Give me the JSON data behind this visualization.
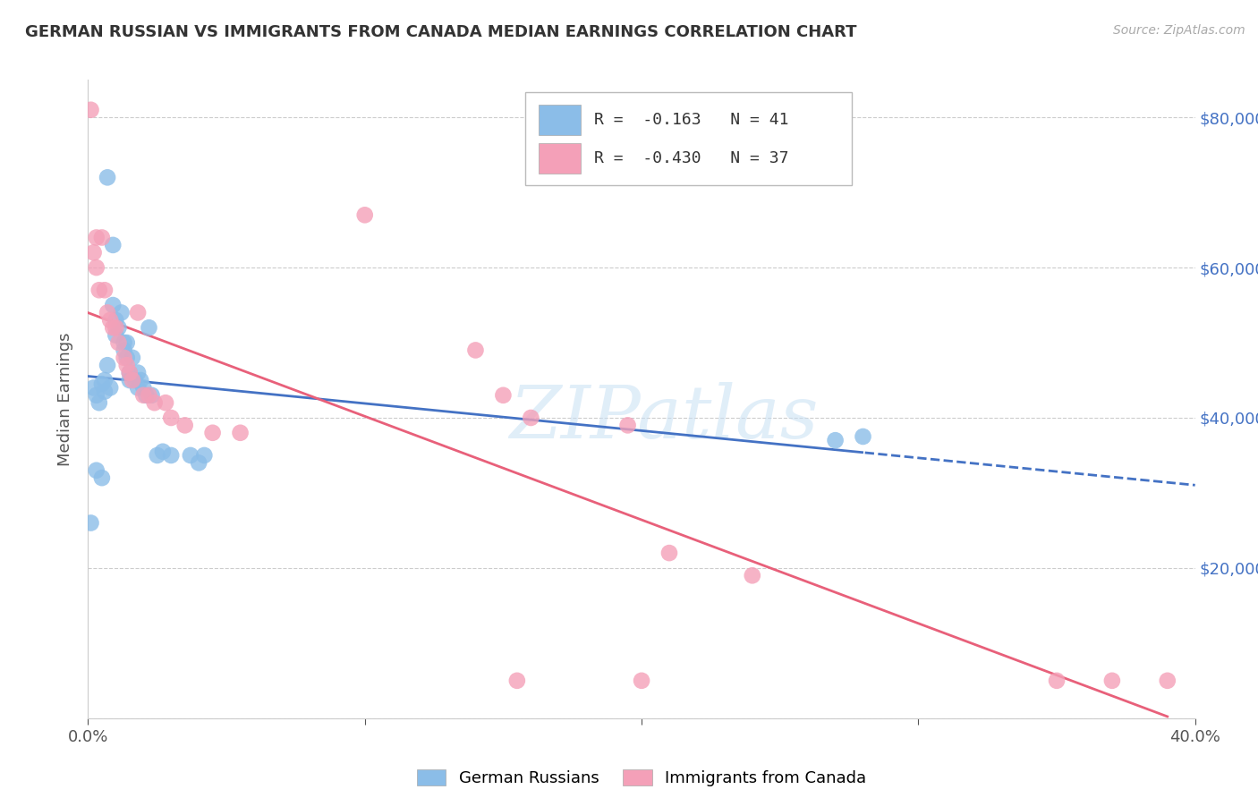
{
  "title": "GERMAN RUSSIAN VS IMMIGRANTS FROM CANADA MEDIAN EARNINGS CORRELATION CHART",
  "source": "Source: ZipAtlas.com",
  "ylabel": "Median Earnings",
  "watermark": "ZIPatlas",
  "legend_text_blue_R": "R =  -0.163",
  "legend_text_blue_N": "N = 41",
  "legend_text_pink_R": "R =  -0.430",
  "legend_text_pink_N": "N = 37",
  "legend_labels": [
    "German Russians",
    "Immigrants from Canada"
  ],
  "blue_color": "#8BBDE8",
  "pink_color": "#F4A0B8",
  "blue_line_color": "#4472C4",
  "pink_line_color": "#E8607A",
  "blue_scatter": [
    [
      0.002,
      44000
    ],
    [
      0.003,
      43000
    ],
    [
      0.004,
      42000
    ],
    [
      0.005,
      44500
    ],
    [
      0.006,
      43500
    ],
    [
      0.006,
      45000
    ],
    [
      0.007,
      72000
    ],
    [
      0.007,
      47000
    ],
    [
      0.008,
      44000
    ],
    [
      0.009,
      63000
    ],
    [
      0.009,
      55000
    ],
    [
      0.01,
      53000
    ],
    [
      0.01,
      51000
    ],
    [
      0.011,
      52000
    ],
    [
      0.012,
      54000
    ],
    [
      0.013,
      50000
    ],
    [
      0.013,
      49000
    ],
    [
      0.014,
      50000
    ],
    [
      0.014,
      48000
    ],
    [
      0.015,
      46000
    ],
    [
      0.015,
      45000
    ],
    [
      0.016,
      48000
    ],
    [
      0.017,
      45000
    ],
    [
      0.018,
      46000
    ],
    [
      0.018,
      44000
    ],
    [
      0.019,
      45000
    ],
    [
      0.02,
      44000
    ],
    [
      0.021,
      43000
    ],
    [
      0.022,
      52000
    ],
    [
      0.023,
      43000
    ],
    [
      0.025,
      35000
    ],
    [
      0.027,
      35500
    ],
    [
      0.03,
      35000
    ],
    [
      0.037,
      35000
    ],
    [
      0.04,
      34000
    ],
    [
      0.042,
      35000
    ],
    [
      0.003,
      33000
    ],
    [
      0.005,
      32000
    ],
    [
      0.001,
      26000
    ],
    [
      0.27,
      37000
    ],
    [
      0.28,
      37500
    ]
  ],
  "pink_scatter": [
    [
      0.001,
      81000
    ],
    [
      0.002,
      62000
    ],
    [
      0.003,
      64000
    ],
    [
      0.003,
      60000
    ],
    [
      0.004,
      57000
    ],
    [
      0.005,
      64000
    ],
    [
      0.006,
      57000
    ],
    [
      0.007,
      54000
    ],
    [
      0.008,
      53000
    ],
    [
      0.009,
      52000
    ],
    [
      0.01,
      52000
    ],
    [
      0.011,
      50000
    ],
    [
      0.013,
      48000
    ],
    [
      0.014,
      47000
    ],
    [
      0.015,
      46000
    ],
    [
      0.016,
      45000
    ],
    [
      0.018,
      54000
    ],
    [
      0.02,
      43000
    ],
    [
      0.022,
      43000
    ],
    [
      0.024,
      42000
    ],
    [
      0.028,
      42000
    ],
    [
      0.03,
      40000
    ],
    [
      0.035,
      39000
    ],
    [
      0.045,
      38000
    ],
    [
      0.055,
      38000
    ],
    [
      0.1,
      67000
    ],
    [
      0.14,
      49000
    ],
    [
      0.15,
      43000
    ],
    [
      0.16,
      40000
    ],
    [
      0.195,
      39000
    ],
    [
      0.21,
      22000
    ],
    [
      0.24,
      19000
    ],
    [
      0.155,
      5000
    ],
    [
      0.2,
      5000
    ],
    [
      0.35,
      5000
    ],
    [
      0.37,
      5000
    ],
    [
      0.39,
      5000
    ]
  ],
  "xlim": [
    0.0,
    0.4
  ],
  "ylim": [
    0,
    85000
  ],
  "background_color": "#FFFFFF",
  "grid_color": "#CCCCCC"
}
